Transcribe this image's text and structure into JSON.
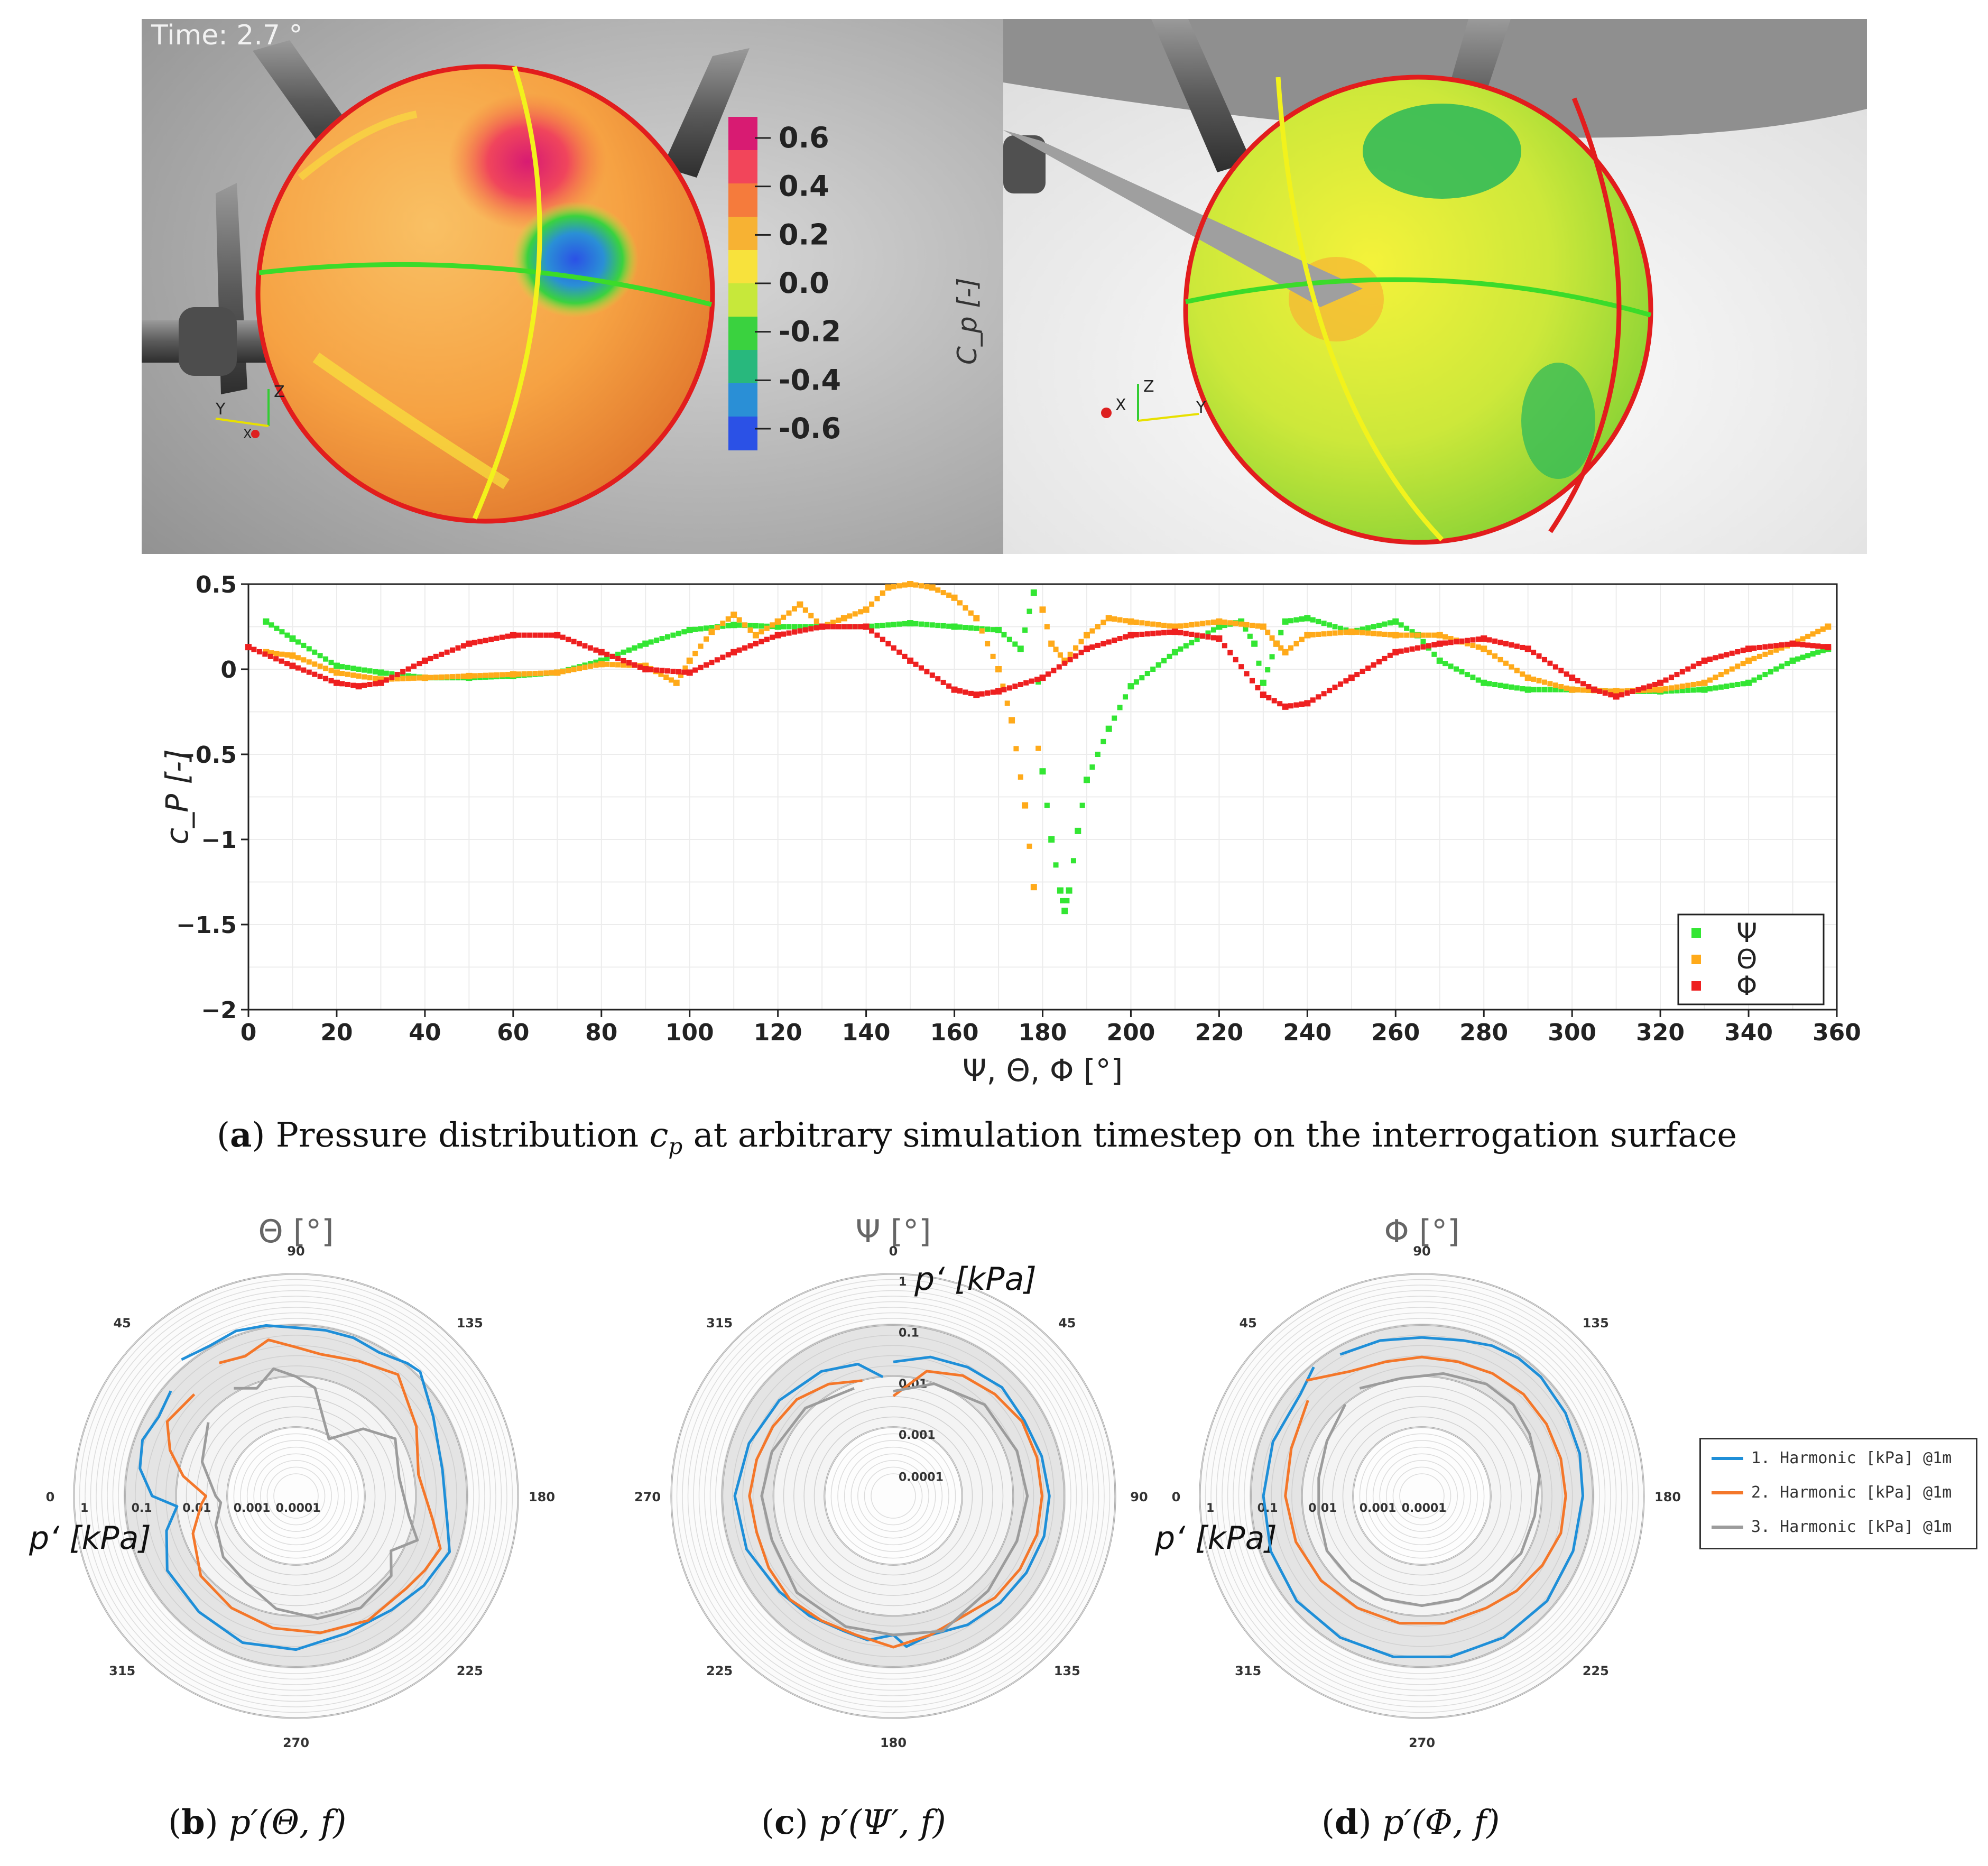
{
  "render": {
    "time_label": "Time: 2.7 °",
    "colorbar_label": "C_p [-]",
    "colorbar_ticks": [
      "0.6",
      "0.4",
      "0.2",
      "0.0",
      "-0.2",
      "-0.4",
      "-0.6"
    ],
    "colorbar_colors": [
      "#d81b72",
      "#f2455a",
      "#f57b3c",
      "#f7b233",
      "#f8e23c",
      "#c7e83a",
      "#3ad23f",
      "#28b87d",
      "#2a8fd6",
      "#2b51e6"
    ],
    "axis_labels_left": {
      "x": "X",
      "y": "Y",
      "z": "Z"
    },
    "axis_labels_right": {
      "x": "X",
      "y": "Y",
      "z": "Z"
    }
  },
  "caption_a": {
    "letter": "a",
    "text": "Pressure distribution",
    "symbol": "cp",
    "rest": "at arbitrary simulation timestep on the interrogation surface"
  },
  "caption_b": {
    "letter": "b",
    "text": "p′(Θ, f)"
  },
  "caption_c": {
    "letter": "c",
    "text": "p′(Ψ′, f)"
  },
  "caption_d": {
    "letter": "d",
    "text": "p′(Φ, f)"
  },
  "polar_legend": {
    "entries": [
      "1. Harmonic [kPa] @1m",
      "2. Harmonic [kPa] @1m",
      "3. Harmonic [kPa] @1m"
    ]
  },
  "chart_data": [
    {
      "type": "scatter",
      "xlabel": "Ψ, Θ, Φ [°]",
      "ylabel": "c_P [-]",
      "xlim": [
        0,
        360
      ],
      "ylim": [
        -2,
        0.5
      ],
      "xticks": [
        0,
        20,
        40,
        60,
        80,
        100,
        120,
        140,
        160,
        180,
        200,
        220,
        240,
        260,
        280,
        300,
        320,
        340,
        360
      ],
      "yticks": [
        0.5,
        0,
        -0.5,
        -1,
        -1.5,
        -2
      ],
      "ytick_labels": [
        "0.5",
        "0",
        "−0.5",
        "−1",
        "−1.5",
        "−2"
      ],
      "grid": true,
      "legend_position": "bottom-right",
      "colors": {
        "Ψ": "#33e633",
        "Θ": "#ffaa1a",
        "Φ": "#ee2020"
      },
      "series": [
        {
          "name": "Ψ",
          "x": [
            4,
            10,
            20,
            30,
            40,
            50,
            60,
            70,
            80,
            90,
            100,
            110,
            120,
            130,
            140,
            150,
            160,
            170,
            175,
            178,
            180,
            182,
            184,
            185,
            186,
            188,
            190,
            195,
            200,
            210,
            220,
            225,
            228,
            230,
            233,
            235,
            240,
            250,
            260,
            265,
            270,
            280,
            290,
            300,
            310,
            320,
            330,
            340,
            350,
            358
          ],
          "y": [
            0.28,
            0.18,
            0.02,
            -0.02,
            -0.05,
            -0.05,
            -0.04,
            -0.02,
            0.05,
            0.15,
            0.23,
            0.26,
            0.25,
            0.25,
            0.25,
            0.27,
            0.25,
            0.23,
            0.12,
            0.45,
            -0.6,
            -1.0,
            -1.3,
            -1.42,
            -1.3,
            -0.95,
            -0.65,
            -0.35,
            -0.1,
            0.1,
            0.25,
            0.28,
            0.15,
            -0.08,
            0.15,
            0.28,
            0.3,
            0.22,
            0.28,
            0.2,
            0.05,
            -0.08,
            -0.12,
            -0.12,
            -0.13,
            -0.13,
            -0.12,
            -0.08,
            0.05,
            0.12
          ]
        },
        {
          "name": "Θ",
          "x": [
            4,
            10,
            20,
            30,
            40,
            50,
            60,
            70,
            80,
            90,
            97,
            100,
            105,
            110,
            115,
            120,
            125,
            130,
            135,
            140,
            145,
            150,
            155,
            160,
            165,
            170,
            173,
            176,
            178,
            180,
            182,
            185,
            190,
            195,
            200,
            210,
            220,
            230,
            233,
            235,
            240,
            250,
            260,
            270,
            280,
            290,
            300,
            310,
            320,
            330,
            340,
            350,
            358
          ],
          "y": [
            0.1,
            0.08,
            -0.02,
            -0.06,
            -0.05,
            -0.04,
            -0.03,
            -0.02,
            0.03,
            0.02,
            -0.08,
            0.05,
            0.22,
            0.32,
            0.2,
            0.28,
            0.38,
            0.25,
            0.3,
            0.35,
            0.48,
            0.5,
            0.48,
            0.42,
            0.3,
            0.0,
            -0.3,
            -0.8,
            -1.28,
            0.35,
            0.15,
            0.05,
            0.2,
            0.3,
            0.28,
            0.25,
            0.28,
            0.25,
            0.15,
            0.1,
            0.2,
            0.22,
            0.2,
            0.2,
            0.12,
            -0.05,
            -0.12,
            -0.13,
            -0.12,
            -0.08,
            0.05,
            0.15,
            0.25
          ]
        },
        {
          "name": "Φ",
          "x": [
            0,
            10,
            20,
            25,
            30,
            40,
            50,
            60,
            70,
            80,
            90,
            100,
            110,
            120,
            130,
            140,
            150,
            160,
            165,
            170,
            180,
            190,
            200,
            210,
            220,
            230,
            235,
            240,
            250,
            260,
            270,
            280,
            290,
            300,
            305,
            310,
            320,
            330,
            340,
            350,
            358
          ],
          "y": [
            0.13,
            0.02,
            -0.08,
            -0.1,
            -0.08,
            0.05,
            0.15,
            0.2,
            0.2,
            0.1,
            0.0,
            -0.02,
            0.1,
            0.2,
            0.25,
            0.25,
            0.05,
            -0.12,
            -0.15,
            -0.13,
            -0.05,
            0.12,
            0.2,
            0.22,
            0.18,
            -0.15,
            -0.22,
            -0.2,
            -0.05,
            0.1,
            0.15,
            0.18,
            0.12,
            -0.05,
            -0.12,
            -0.16,
            -0.08,
            0.05,
            0.12,
            0.15,
            0.13
          ]
        }
      ]
    },
    {
      "type": "polar",
      "title": "Θ [°]",
      "radial_label": "p‘ [kPa]",
      "radial_ticks": [
        "1",
        "0.1",
        "0.01",
        "0.001",
        "0.0001"
      ],
      "angle_ticks": [
        "90",
        "135",
        "180",
        "225",
        "270",
        "315",
        "0",
        "45"
      ],
      "series": [
        {
          "name": "1. Harmonic [kPa] @1m",
          "angle_deg": [
            50,
            60,
            70,
            80,
            90,
            100,
            110,
            120,
            130,
            135,
            150,
            170,
            190,
            200,
            215,
            230,
            250,
            270,
            290,
            310,
            330,
            345,
            355,
            0,
            10,
            20,
            30,
            40
          ],
          "log_r": [
            -0.9,
            -1.0,
            -0.95,
            -1.0,
            -1.1,
            -1.1,
            -1.1,
            -1.15,
            -1.0,
            -0.95,
            -1.3,
            -1.5,
            -1.4,
            -1.2,
            -1.35,
            -1.5,
            -1.55,
            -1.4,
            -1.35,
            -1.45,
            -1.5,
            -1.8,
            -2.1,
            -1.6,
            -1.3,
            -1.2,
            -1.3,
            -1.2
          ]
        },
        {
          "name": "2. Harmonic [kPa] @1m",
          "angle_deg": [
            60,
            70,
            80,
            90,
            100,
            115,
            130,
            150,
            170,
            190,
            200,
            210,
            220,
            240,
            260,
            280,
            300,
            320,
            340,
            355,
            0,
            10,
            20,
            30,
            45
          ],
          "log_r": [
            -1.4,
            -1.5,
            -1.3,
            -1.5,
            -1.6,
            -1.5,
            -1.3,
            -1.7,
            -2.0,
            -1.7,
            -1.4,
            -1.5,
            -1.6,
            -1.6,
            -1.7,
            -1.8,
            -1.9,
            -2.0,
            -2.3,
            -2.6,
            -2.7,
            -2.2,
            -1.8,
            -1.5,
            -1.6
          ]
        },
        {
          "name": "3. Harmonic [kPa] @1m",
          "angle_deg": [
            60,
            70,
            80,
            90,
            100,
            120,
            135,
            150,
            170,
            190,
            200,
            210,
            220,
            240,
            260,
            280,
            300,
            320,
            340,
            355,
            0,
            20,
            40
          ],
          "log_r": [
            -2.0,
            -2.2,
            -1.9,
            -2.1,
            -2.3,
            -3.2,
            -2.6,
            -2.2,
            -2.4,
            -2.2,
            -1.9,
            -2.3,
            -2.0,
            -1.9,
            -2.0,
            -2.2,
            -2.5,
            -2.6,
            -2.8,
            -3.0,
            -2.9,
            -2.5,
            -2.2
          ]
        }
      ]
    },
    {
      "type": "polar",
      "title": "Ψ [°]",
      "radial_label": "p‘ [kPa]",
      "radial_ticks": [
        "1",
        "0.1",
        "0.01",
        "0.001",
        "0.0001"
      ],
      "angle_ticks": [
        "0",
        "45",
        "90",
        "135",
        "180",
        "225",
        "270",
        "315"
      ],
      "series": [
        {
          "name": "1. Harmonic [kPa] @1m",
          "angle_deg": [
            0,
            15,
            30,
            45,
            60,
            75,
            90,
            105,
            120,
            135,
            150,
            165,
            175,
            180,
            190,
            200,
            215,
            230,
            250,
            270,
            290,
            310,
            330,
            345,
            355
          ],
          "log_r": [
            -1.8,
            -1.6,
            -1.5,
            -1.4,
            -1.45,
            -1.4,
            -1.35,
            -1.35,
            -1.4,
            -1.45,
            -1.5,
            -1.6,
            -1.45,
            -1.7,
            -1.55,
            -1.6,
            -1.55,
            -1.5,
            -1.35,
            -1.3,
            -1.4,
            -1.5,
            -1.6,
            -1.75,
            -2.1
          ]
        },
        {
          "name": "2. Harmonic [kPa] @1m",
          "angle_deg": [
            0,
            15,
            30,
            45,
            60,
            75,
            90,
            105,
            120,
            135,
            150,
            165,
            180,
            195,
            210,
            225,
            240,
            255,
            270,
            285,
            300,
            315,
            330,
            345
          ],
          "log_r": [
            -2.5,
            -1.9,
            -1.7,
            -1.6,
            -1.5,
            -1.5,
            -1.5,
            -1.5,
            -1.55,
            -1.6,
            -1.7,
            -1.6,
            -1.45,
            -1.6,
            -1.6,
            -1.55,
            -1.6,
            -1.65,
            -1.6,
            -1.65,
            -1.7,
            -1.75,
            -1.9,
            -2.1
          ]
        },
        {
          "name": "3. Harmonic [kPa] @1m",
          "angle_deg": [
            0,
            20,
            45,
            70,
            90,
            110,
            135,
            160,
            180,
            200,
            225,
            250,
            270,
            290,
            315,
            340
          ],
          "log_r": [
            -2.4,
            -2.1,
            -1.9,
            -1.85,
            -1.8,
            -1.85,
            -1.8,
            -1.6,
            -1.7,
            -1.7,
            -1.75,
            -1.9,
            -1.85,
            -1.9,
            -2.0,
            -2.2
          ]
        }
      ]
    },
    {
      "type": "polar",
      "title": "Φ [°]",
      "radial_label": "p‘ [kPa]",
      "radial_ticks": [
        "1",
        "0.1",
        "0.01",
        "0.001",
        "0.0001"
      ],
      "angle_ticks": [
        "90",
        "135",
        "180",
        "225",
        "270",
        "315",
        "0",
        "45"
      ],
      "series": [
        {
          "name": "1. Harmonic [kPa] @1m",
          "angle_deg": [
            60,
            75,
            90,
            105,
            115,
            125,
            135,
            150,
            165,
            180,
            200,
            220,
            240,
            260,
            280,
            300,
            320,
            340,
            0,
            20,
            40,
            50
          ],
          "log_r": [
            -1.2,
            -1.25,
            -1.3,
            -1.25,
            -1.15,
            -1.1,
            -1.1,
            -1.15,
            -1.2,
            -1.25,
            -1.25,
            -1.2,
            -1.2,
            -1.2,
            -1.2,
            -1.2,
            -1.2,
            -1.25,
            -1.3,
            -1.3,
            -1.3,
            -1.1
          ]
        },
        {
          "name": "2. Harmonic [kPa] @1m",
          "angle_deg": [
            45,
            60,
            75,
            90,
            105,
            120,
            135,
            150,
            165,
            180,
            195,
            210,
            225,
            240,
            260,
            280,
            300,
            320,
            340,
            0,
            20,
            40
          ],
          "log_r": [
            -1.2,
            -1.6,
            -1.7,
            -1.7,
            -1.7,
            -1.65,
            -1.6,
            -1.6,
            -1.6,
            -1.6,
            -1.6,
            -1.7,
            -1.8,
            -1.9,
            -1.9,
            -1.9,
            -1.9,
            -1.85,
            -1.8,
            -1.75,
            -1.7,
            -1.5
          ]
        },
        {
          "name": "3. Harmonic [kPa] @1m",
          "angle_deg": [
            60,
            80,
            100,
            120,
            135,
            150,
            170,
            190,
            210,
            230,
            250,
            270,
            290,
            310,
            330,
            350,
            10,
            30,
            50
          ],
          "log_r": [
            -2.0,
            -2.1,
            -2.0,
            -1.9,
            -1.9,
            -2.0,
            -2.1,
            -2.2,
            -2.2,
            -2.3,
            -2.3,
            -2.3,
            -2.3,
            -2.3,
            -2.3,
            -2.4,
            -2.4,
            -2.3,
            -2.1
          ]
        }
      ]
    }
  ]
}
